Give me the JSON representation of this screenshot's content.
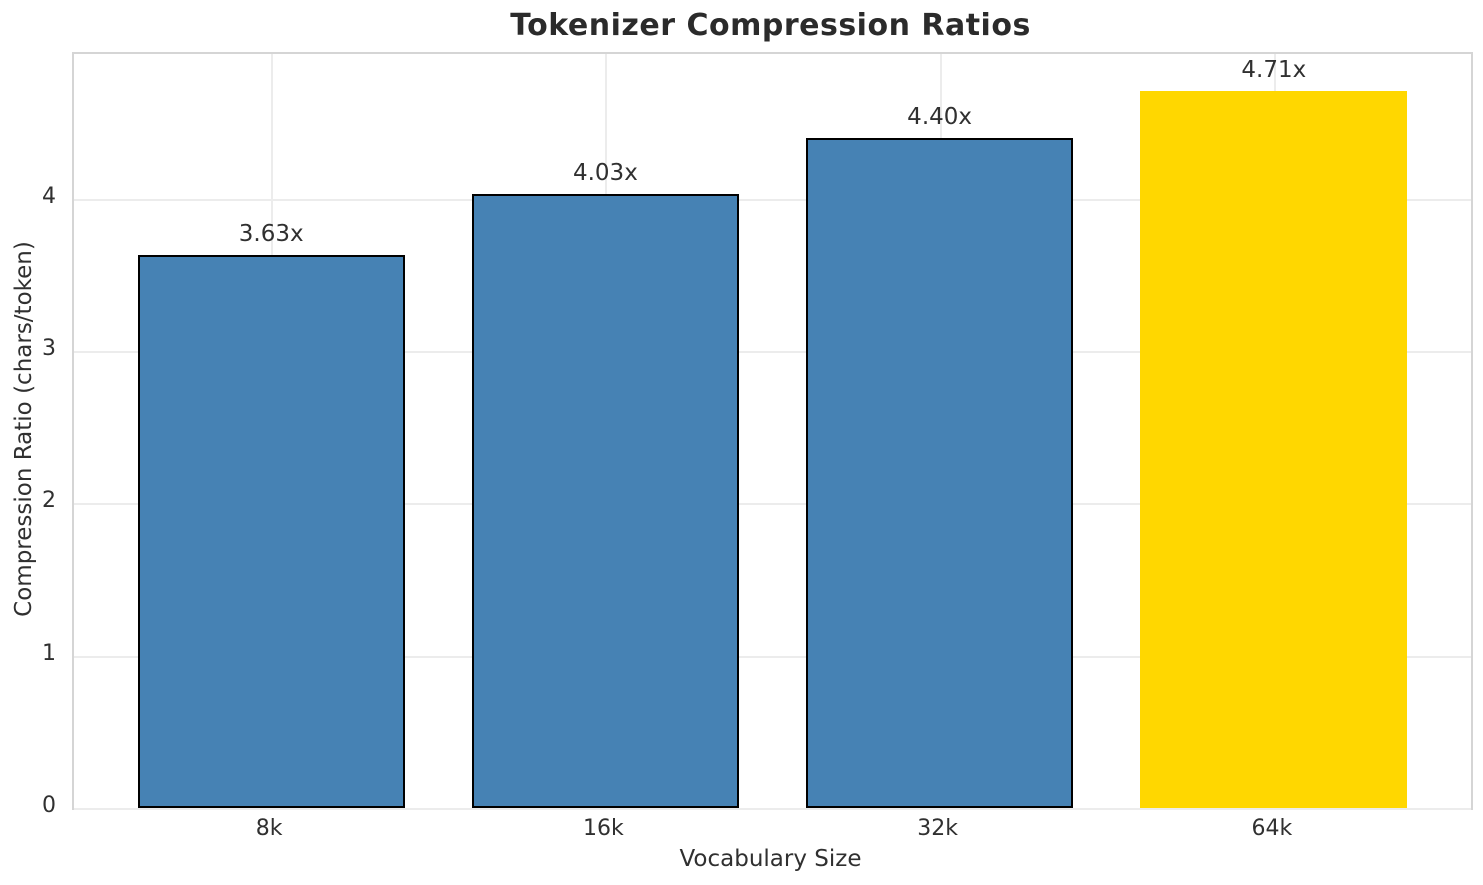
{
  "chart_data": {
    "type": "bar",
    "title": "Tokenizer Compression Ratios",
    "xlabel": "Vocabulary Size",
    "ylabel": "Compression Ratio (chars/token)",
    "categories": [
      "8k",
      "16k",
      "32k",
      "64k"
    ],
    "values": [
      3.63,
      4.03,
      4.4,
      4.71
    ],
    "bar_labels": [
      "3.63x",
      "4.03x",
      "4.40x",
      "4.71x"
    ],
    "yticks": [
      0,
      1,
      2,
      3,
      4
    ],
    "ylim": [
      0,
      4.95
    ],
    "grid": true,
    "legend": "none",
    "bar_colors": [
      "#4682B4",
      "#4682B4",
      "#4682B4",
      "#FFD700"
    ],
    "bar_edge_colors": [
      "#000000",
      "#000000",
      "#000000",
      "#FFD700"
    ],
    "highlight_index": 3,
    "grid_color": "#ececec",
    "spine_color": "#d5d5d5",
    "text_color": "#303030",
    "title_color": "#2b2b2b"
  }
}
